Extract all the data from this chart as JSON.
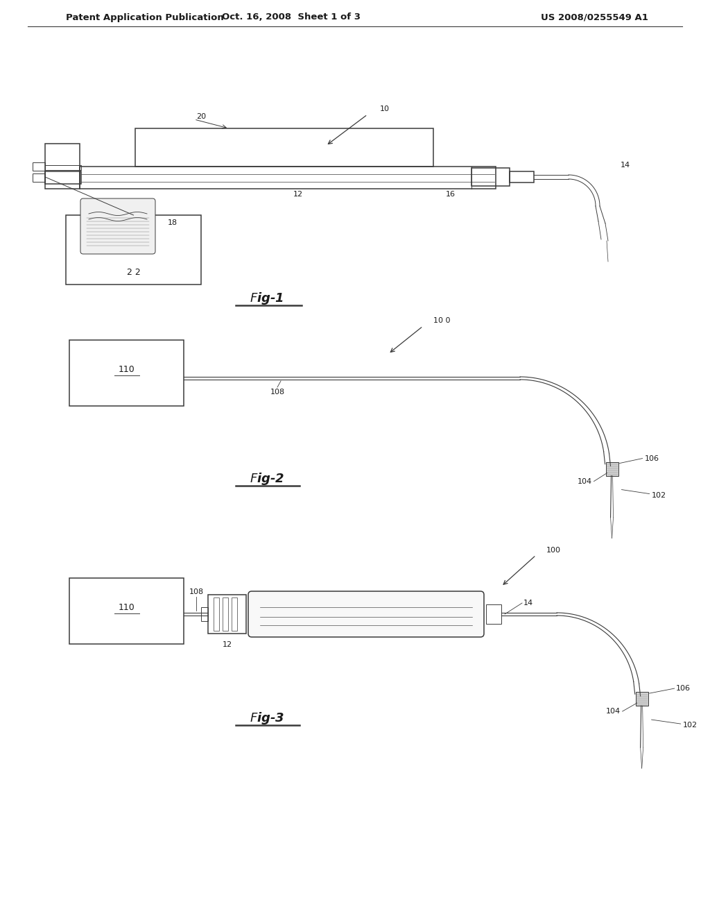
{
  "background_color": "#ffffff",
  "header_left": "Patent Application Publication",
  "header_mid": "Oct. 16, 2008  Sheet 1 of 3",
  "header_right": "US 2008/0255549 A1",
  "line_color": "#3a3a3a",
  "text_color": "#1a1a1a",
  "header_fontsize": 9.5,
  "label_fontsize": 8,
  "fig_label_fontsize": 13
}
